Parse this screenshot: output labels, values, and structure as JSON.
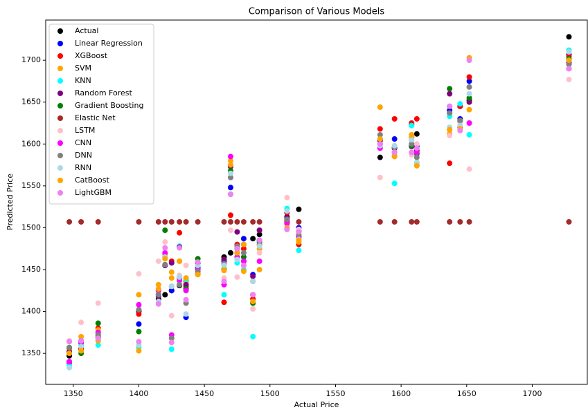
{
  "chart_data": {
    "type": "scatter",
    "title": "Comparison of Various Models",
    "x_label": "Actual Price",
    "y_label": "Predicted Price",
    "xlim": [
      1329,
      1742
    ],
    "ylim": [
      1313,
      1748
    ],
    "xticks": [
      1350,
      1400,
      1450,
      1500,
      1550,
      1600,
      1650,
      1700
    ],
    "yticks": [
      1350,
      1400,
      1450,
      1500,
      1550,
      1600,
      1650,
      1700
    ],
    "legend": "upper left",
    "x": [
      1347,
      1356,
      1369,
      1400,
      1415,
      1420,
      1425,
      1431,
      1436,
      1445,
      1465,
      1470,
      1475,
      1480,
      1487,
      1492,
      1513,
      1522,
      1584,
      1595,
      1608,
      1612,
      1637,
      1645,
      1652,
      1728
    ],
    "series": [
      {
        "name": "Actual",
        "color": "#000000",
        "values": [
          1347,
          1356,
          1369,
          1400,
          1415,
          1420,
          1425,
          1431,
          1436,
          1445,
          1465,
          1470,
          1475,
          1480,
          1487,
          1492,
          1513,
          1522,
          1584,
          1595,
          1608,
          1612,
          1637,
          1645,
          1652,
          1728
        ]
      },
      {
        "name": "Linear Regression",
        "color": "#0000ff",
        "values": [
          1340,
          1362,
          1372,
          1385,
          1420,
          1455,
          1425,
          1440,
          1393,
          1452,
          1460,
          1548,
          1470,
          1487,
          1444,
          1485,
          1510,
          1500,
          1600,
          1606,
          1623,
          1597,
          1640,
          1630,
          1675,
          1707
        ]
      },
      {
        "name": "XGBoost",
        "color": "#ff0000",
        "values": [
          1338,
          1355,
          1380,
          1397,
          1425,
          1465,
          1460,
          1494,
          1430,
          1450,
          1411,
          1515,
          1480,
          1475,
          1415,
          1497,
          1518,
          1480,
          1618,
          1630,
          1625,
          1630,
          1577,
          1645,
          1680,
          1705
        ]
      },
      {
        "name": "SVM",
        "color": "#ffa500",
        "values": [
          1355,
          1370,
          1378,
          1420,
          1432,
          1468,
          1440,
          1460,
          1435,
          1445,
          1455,
          1580,
          1465,
          1480,
          1410,
          1475,
          1505,
          1483,
          1644,
          1585,
          1608,
          1575,
          1612,
          1620,
          1641,
          1700
        ]
      },
      {
        "name": "KNN",
        "color": "#00ffff",
        "values": [
          1336,
          1360,
          1360,
          1357,
          1410,
          1465,
          1355,
          1478,
          1438,
          1455,
          1420,
          1540,
          1458,
          1450,
          1370,
          1480,
          1523,
          1473,
          1600,
          1553,
          1622,
          1578,
          1633,
          1648,
          1611,
          1712
        ]
      },
      {
        "name": "Random Forest",
        "color": "#800080",
        "values": [
          1352,
          1365,
          1372,
          1402,
          1418,
          1455,
          1458,
          1477,
          1432,
          1458,
          1462,
          1573,
          1495,
          1460,
          1442,
          1497,
          1512,
          1490,
          1604,
          1595,
          1597,
          1592,
          1660,
          1627,
          1650,
          1697
        ]
      },
      {
        "name": "Gradient Boosting",
        "color": "#008000",
        "values": [
          1357,
          1350,
          1386,
          1376,
          1420,
          1497,
          1430,
          1440,
          1427,
          1463,
          1450,
          1568,
          1475,
          1465,
          1410,
          1483,
          1508,
          1496,
          1606,
          1596,
          1598,
          1588,
          1666,
          1628,
          1655,
          1702
        ]
      },
      {
        "name": "Elastic Net",
        "color": "#a52a2a",
        "values": [
          1507,
          1507,
          1507,
          1507,
          1507,
          1507,
          1507,
          1507,
          1507,
          1507,
          1507,
          1507,
          1507,
          1507,
          1507,
          1507,
          1507,
          1507,
          1507,
          1507,
          1507,
          1507,
          1507,
          1507,
          1507,
          1507
        ]
      },
      {
        "name": "LSTM",
        "color": "#ffc0cb",
        "values": [
          1365,
          1387,
          1410,
          1445,
          1460,
          1483,
          1395,
          1443,
          1455,
          1448,
          1440,
          1497,
          1441,
          1470,
          1403,
          1470,
          1536,
          1498,
          1560,
          1590,
          1587,
          1600,
          1610,
          1625,
          1570,
          1677
        ]
      },
      {
        "name": "CNN",
        "color": "#ff00ff",
        "values": [
          1340,
          1363,
          1375,
          1408,
          1425,
          1470,
          1372,
          1437,
          1425,
          1450,
          1432,
          1585,
          1465,
          1460,
          1420,
          1460,
          1505,
          1488,
          1595,
          1590,
          1605,
          1590,
          1645,
          1620,
          1625,
          1690
        ]
      },
      {
        "name": "DNN",
        "color": "#808080",
        "values": [
          1357,
          1365,
          1372,
          1402,
          1420,
          1456,
          1368,
          1432,
          1410,
          1448,
          1457,
          1560,
          1478,
          1470,
          1436,
          1480,
          1510,
          1492,
          1611,
          1596,
          1600,
          1584,
          1637,
          1628,
          1668,
          1695
        ]
      },
      {
        "name": "RNN",
        "color": "#add8e6",
        "values": [
          1333,
          1358,
          1366,
          1360,
          1412,
          1465,
          1430,
          1441,
          1397,
          1455,
          1455,
          1565,
          1462,
          1455,
          1436,
          1478,
          1520,
          1486,
          1598,
          1598,
          1605,
          1578,
          1620,
          1622,
          1660,
          1710
        ]
      },
      {
        "name": "CatBoost",
        "color": "#ffa500",
        "values": [
          1350,
          1353,
          1365,
          1353,
          1427,
          1463,
          1447,
          1460,
          1440,
          1444,
          1449,
          1575,
          1470,
          1448,
          1412,
          1450,
          1500,
          1485,
          1606,
          1586,
          1611,
          1574,
          1617,
          1618,
          1703,
          1700
        ]
      },
      {
        "name": "LightGBM",
        "color": "#ee82ee",
        "values": [
          1364,
          1365,
          1368,
          1364,
          1409,
          1476,
          1363,
          1476,
          1414,
          1459,
          1436,
          1540,
          1475,
          1455,
          1420,
          1485,
          1498,
          1495,
          1600,
          1590,
          1590,
          1595,
          1645,
          1616,
          1700,
          1690
        ]
      }
    ]
  }
}
